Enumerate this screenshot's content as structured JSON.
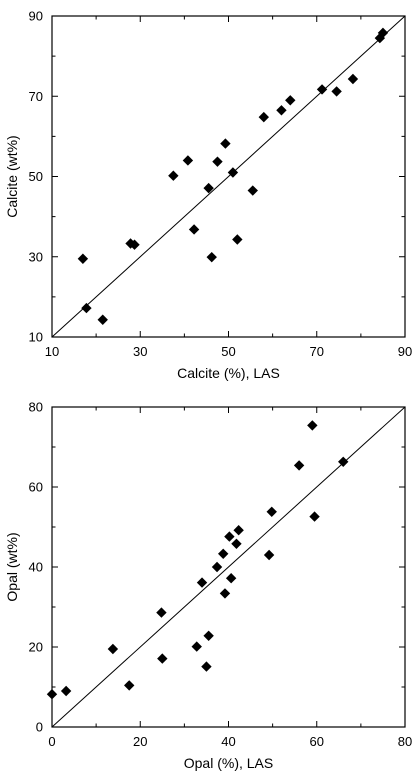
{
  "chart_data": [
    {
      "type": "scatter",
      "xlabel": "Calcite (%), LAS",
      "ylabel": "Calcite (wt%)",
      "xlim": [
        10,
        90
      ],
      "ylim": [
        10,
        90
      ],
      "xticks": [
        "10",
        "30",
        "50",
        "70",
        "90"
      ],
      "yticks": [
        "10",
        "30",
        "50",
        "70",
        "90"
      ],
      "reference_line": "1:1",
      "grid": false,
      "marker": "diamond",
      "color": "#000000",
      "points": [
        {
          "x": 17,
          "y": 29.5
        },
        {
          "x": 17.8,
          "y": 17.2
        },
        {
          "x": 21.5,
          "y": 14.3
        },
        {
          "x": 27.8,
          "y": 33.3
        },
        {
          "x": 28.7,
          "y": 33.0
        },
        {
          "x": 37.5,
          "y": 50.2
        },
        {
          "x": 40.8,
          "y": 54.0
        },
        {
          "x": 42.2,
          "y": 36.8
        },
        {
          "x": 45.5,
          "y": 47.1
        },
        {
          "x": 46.2,
          "y": 29.9
        },
        {
          "x": 47.5,
          "y": 53.7
        },
        {
          "x": 49.3,
          "y": 58.2
        },
        {
          "x": 51.0,
          "y": 51.0
        },
        {
          "x": 52.0,
          "y": 34.3
        },
        {
          "x": 55.5,
          "y": 46.5
        },
        {
          "x": 58.0,
          "y": 64.8
        },
        {
          "x": 62.0,
          "y": 66.5
        },
        {
          "x": 64.0,
          "y": 69.0
        },
        {
          "x": 71.2,
          "y": 71.7
        },
        {
          "x": 74.5,
          "y": 71.2
        },
        {
          "x": 78.2,
          "y": 74.3
        },
        {
          "x": 84.3,
          "y": 84.5
        },
        {
          "x": 85.0,
          "y": 85.8
        }
      ]
    },
    {
      "type": "scatter",
      "xlabel": "Opal (%), LAS",
      "ylabel": "Opal (wt%)",
      "xlim": [
        0,
        80
      ],
      "ylim": [
        0,
        80
      ],
      "xticks": [
        "0",
        "20",
        "40",
        "60",
        "80"
      ],
      "yticks": [
        "0",
        "20",
        "40",
        "60",
        "80"
      ],
      "reference_line": "1:1",
      "grid": false,
      "marker": "diamond",
      "color": "#000000",
      "points": [
        {
          "x": 0,
          "y": 8.2
        },
        {
          "x": 3.2,
          "y": 9.0
        },
        {
          "x": 13.8,
          "y": 19.5
        },
        {
          "x": 17.5,
          "y": 10.4
        },
        {
          "x": 24.8,
          "y": 28.6
        },
        {
          "x": 25.0,
          "y": 17.1
        },
        {
          "x": 32.8,
          "y": 20.1
        },
        {
          "x": 34.0,
          "y": 36.1
        },
        {
          "x": 35.0,
          "y": 15.1
        },
        {
          "x": 35.5,
          "y": 22.8
        },
        {
          "x": 37.4,
          "y": 40.0
        },
        {
          "x": 38.8,
          "y": 43.3
        },
        {
          "x": 39.2,
          "y": 33.4
        },
        {
          "x": 40.2,
          "y": 47.6
        },
        {
          "x": 40.6,
          "y": 37.2
        },
        {
          "x": 41.8,
          "y": 45.8
        },
        {
          "x": 42.3,
          "y": 49.2
        },
        {
          "x": 49.2,
          "y": 43.0
        },
        {
          "x": 49.8,
          "y": 53.8
        },
        {
          "x": 56.0,
          "y": 65.4
        },
        {
          "x": 59.0,
          "y": 75.4
        },
        {
          "x": 59.5,
          "y": 52.6
        },
        {
          "x": 66.0,
          "y": 66.3
        }
      ]
    }
  ]
}
